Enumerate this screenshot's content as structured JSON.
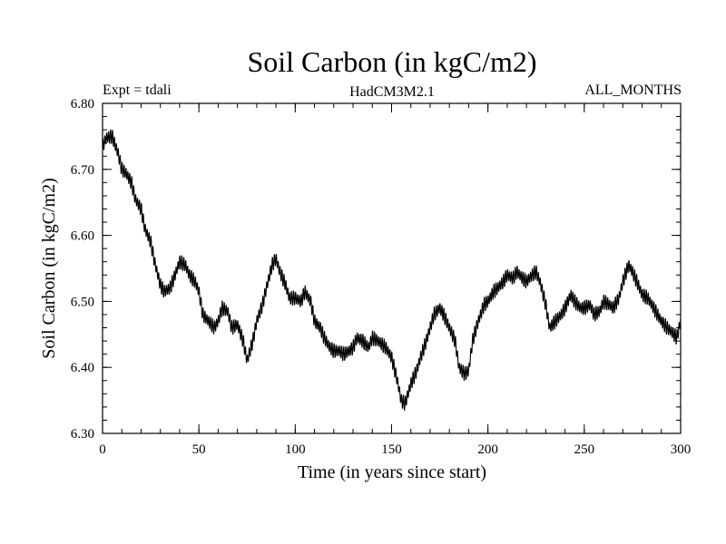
{
  "chart_data": {
    "type": "line",
    "title": "Soil Carbon (in kgC/m2)",
    "subtitle_left": "Expt = tdali",
    "subtitle_center": "HadCM3M2.1",
    "subtitle_right": "ALL_MONTHS",
    "xlabel": "Time (in years since start)",
    "ylabel": "Soil Carbon (in kgC/m2)",
    "xlim": [
      0,
      300
    ],
    "ylim": [
      6.3,
      6.8
    ],
    "x_ticks": [
      0,
      50,
      100,
      150,
      200,
      250,
      300
    ],
    "x_tick_labels": [
      "0",
      "50",
      "100",
      "150",
      "200",
      "250",
      "300"
    ],
    "y_ticks": [
      6.3,
      6.4,
      6.5,
      6.6,
      6.7,
      6.8
    ],
    "y_tick_labels": [
      "6.30",
      "6.40",
      "6.50",
      "6.60",
      "6.70",
      "6.80"
    ],
    "seasonal_amplitude": 0.009,
    "series": [
      {
        "name": "Soil Carbon",
        "color": "#000000",
        "x": [
          0,
          2,
          5,
          8,
          10,
          12,
          15,
          17,
          20,
          22,
          25,
          27,
          30,
          32,
          35,
          37,
          40,
          43,
          45,
          48,
          50,
          52,
          55,
          58,
          60,
          62,
          65,
          67,
          70,
          73,
          75,
          78,
          80,
          83,
          85,
          88,
          90,
          92,
          95,
          97,
          100,
          103,
          105,
          108,
          110,
          113,
          115,
          118,
          120,
          123,
          125,
          128,
          130,
          132,
          135,
          138,
          140,
          143,
          145,
          147,
          150,
          153,
          155,
          157,
          160,
          163,
          165,
          168,
          170,
          172,
          175,
          177,
          180,
          183,
          185,
          188,
          190,
          192,
          195,
          198,
          200,
          203,
          205,
          208,
          210,
          213,
          215,
          218,
          220,
          223,
          225,
          227,
          230,
          232,
          235,
          238,
          240,
          243,
          245,
          248,
          250,
          253,
          255,
          258,
          260,
          263,
          265,
          268,
          270,
          273,
          275,
          278,
          280,
          283,
          285,
          288,
          290,
          293,
          295,
          298,
          300
        ],
        "values": [
          6.735,
          6.748,
          6.75,
          6.725,
          6.7,
          6.695,
          6.68,
          6.655,
          6.64,
          6.61,
          6.59,
          6.56,
          6.525,
          6.515,
          6.52,
          6.535,
          6.56,
          6.555,
          6.54,
          6.53,
          6.515,
          6.48,
          6.47,
          6.46,
          6.47,
          6.49,
          6.485,
          6.46,
          6.465,
          6.44,
          6.41,
          6.44,
          6.47,
          6.495,
          6.52,
          6.555,
          6.565,
          6.545,
          6.525,
          6.505,
          6.505,
          6.5,
          6.515,
          6.5,
          6.47,
          6.46,
          6.445,
          6.43,
          6.425,
          6.425,
          6.42,
          6.425,
          6.43,
          6.445,
          6.44,
          6.43,
          6.445,
          6.44,
          6.435,
          6.43,
          6.415,
          6.38,
          6.35,
          6.345,
          6.375,
          6.395,
          6.415,
          6.44,
          6.46,
          6.48,
          6.49,
          6.48,
          6.46,
          6.44,
          6.4,
          6.39,
          6.395,
          6.44,
          6.47,
          6.495,
          6.5,
          6.515,
          6.52,
          6.53,
          6.54,
          6.535,
          6.545,
          6.535,
          6.53,
          6.54,
          6.545,
          6.53,
          6.495,
          6.46,
          6.47,
          6.48,
          6.49,
          6.51,
          6.5,
          6.49,
          6.49,
          6.495,
          6.48,
          6.485,
          6.5,
          6.495,
          6.49,
          6.505,
          6.53,
          6.555,
          6.545,
          6.525,
          6.51,
          6.505,
          6.495,
          6.48,
          6.47,
          6.46,
          6.455,
          6.445,
          6.47
        ]
      }
    ]
  }
}
